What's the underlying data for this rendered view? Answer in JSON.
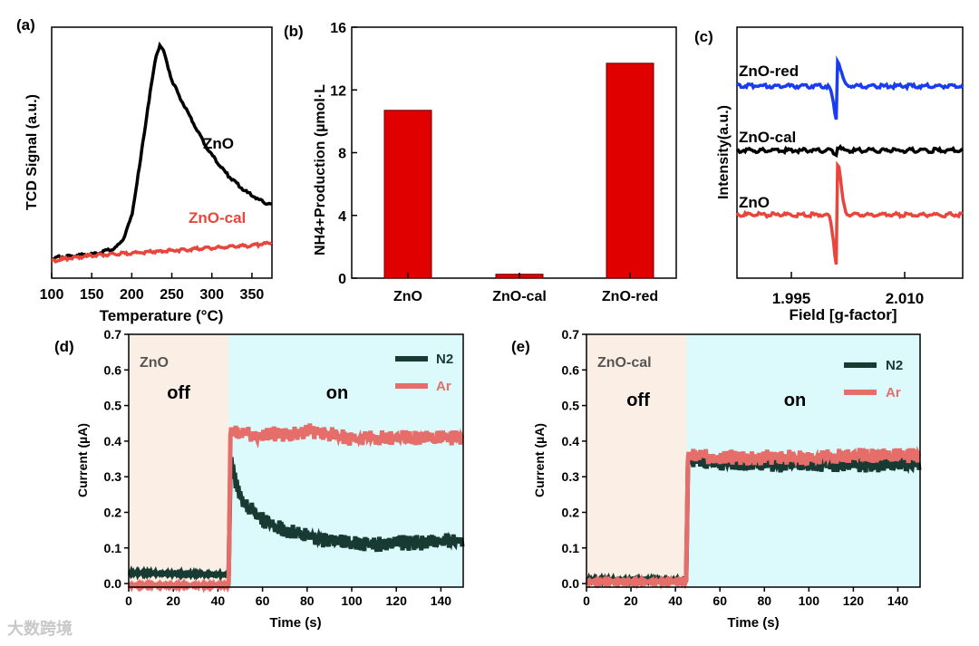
{
  "colors": {
    "black": "#000000",
    "red": "#e8463c",
    "blue": "#1a3cf0",
    "dark_green": "#173a32",
    "salmon": "#e56e6a",
    "off_bg": "#fbeee5",
    "on_bg": "#dcf9fb",
    "bar_red": "#e00000"
  },
  "watermark": "大数跨境",
  "chart_data": [
    {
      "panel": "(a)",
      "type": "line",
      "xlabel": "Temperature (°C)",
      "ylabel": "TCD Signal (a.u.)",
      "xlim": [
        100,
        375
      ],
      "xticks": [
        "100",
        "150",
        "200",
        "250",
        "300",
        "350"
      ],
      "series": [
        {
          "name": "ZnO",
          "color": "#000000",
          "x": [
            100,
            130,
            160,
            180,
            190,
            200,
            210,
            220,
            230,
            235,
            240,
            250,
            260,
            270,
            280,
            290,
            300,
            310,
            320,
            330,
            340,
            350,
            360,
            375
          ],
          "y": [
            0.08,
            0.09,
            0.1,
            0.12,
            0.16,
            0.25,
            0.45,
            0.68,
            0.88,
            0.93,
            0.9,
            0.79,
            0.72,
            0.66,
            0.6,
            0.54,
            0.49,
            0.45,
            0.41,
            0.38,
            0.35,
            0.33,
            0.31,
            0.29
          ]
        },
        {
          "name": "ZnO-cal",
          "color": "#e8463c",
          "x": [
            100,
            150,
            200,
            250,
            300,
            350,
            375
          ],
          "y": [
            0.07,
            0.09,
            0.1,
            0.11,
            0.12,
            0.13,
            0.14
          ]
        }
      ]
    },
    {
      "panel": "(b)",
      "type": "bar",
      "ylabel_main": "Production (µmol·L",
      "ylabel_species": "NH4+",
      "ylim": [
        0,
        16
      ],
      "yticks": [
        "0",
        "4",
        "8",
        "12",
        "16"
      ],
      "categories": [
        "ZnO",
        "ZnO-cal",
        "ZnO-red"
      ],
      "values": [
        10.7,
        0.25,
        13.7
      ]
    },
    {
      "panel": "(c)",
      "type": "line",
      "xlabel": "Field [g-factor]",
      "ylabel": "Intensity(a.u.)",
      "xticks": [
        "1.995",
        "2.010"
      ],
      "series": [
        {
          "name": "ZnO-red",
          "color": "#1a3cf0"
        },
        {
          "name": "ZnO-cal",
          "color": "#000000"
        },
        {
          "name": "ZnO",
          "color": "#e8463c"
        }
      ]
    },
    {
      "panel": "(d)",
      "type": "line",
      "sample": "ZnO",
      "xlabel": "Time (s)",
      "ylabel": "Current (µA)",
      "xlim": [
        0,
        150
      ],
      "ylim": [
        -0.01,
        0.7
      ],
      "xticks": [
        "0",
        "20",
        "40",
        "60",
        "80",
        "100",
        "120",
        "140"
      ],
      "yticks": [
        "0.0",
        "0.1",
        "0.2",
        "0.3",
        "0.4",
        "0.5",
        "0.6",
        "0.7"
      ],
      "region_off": "off",
      "region_on": "on",
      "switch_time": 45,
      "series": [
        {
          "name": "N2",
          "color": "#173a32",
          "x": [
            0,
            45,
            45.5,
            50,
            60,
            70,
            80,
            90,
            100,
            110,
            120,
            130,
            140,
            150
          ],
          "y": [
            0.03,
            0.025,
            0.36,
            0.25,
            0.19,
            0.16,
            0.145,
            0.13,
            0.125,
            0.12,
            0.125,
            0.125,
            0.13,
            0.13
          ]
        },
        {
          "name": "Ar",
          "color": "#e56e6a",
          "x": [
            0,
            45,
            45.5,
            50,
            60,
            70,
            80,
            90,
            100,
            110,
            120,
            130,
            140,
            150
          ],
          "y": [
            -0.005,
            -0.005,
            0.44,
            0.43,
            0.43,
            0.43,
            0.44,
            0.43,
            0.42,
            0.42,
            0.42,
            0.42,
            0.42,
            0.42
          ]
        }
      ]
    },
    {
      "panel": "(e)",
      "type": "line",
      "sample": "ZnO-cal",
      "xlabel": "Time (s)",
      "ylabel": "Current (µA)",
      "xlim": [
        0,
        150
      ],
      "ylim": [
        -0.01,
        0.7
      ],
      "xticks": [
        "0",
        "20",
        "40",
        "60",
        "80",
        "100",
        "120",
        "140"
      ],
      "yticks": [
        "0.0",
        "0.1",
        "0.2",
        "0.3",
        "0.4",
        "0.5",
        "0.6",
        "0.7"
      ],
      "region_off": "off",
      "region_on": "on",
      "switch_time": 45,
      "series": [
        {
          "name": "N2",
          "color": "#173a32",
          "x": [
            0,
            45,
            45.5,
            60,
            80,
            100,
            120,
            140,
            150
          ],
          "y": [
            0.01,
            0.01,
            0.36,
            0.35,
            0.345,
            0.345,
            0.345,
            0.345,
            0.345
          ]
        },
        {
          "name": "Ar",
          "color": "#e56e6a",
          "x": [
            0,
            45,
            45.5,
            60,
            80,
            100,
            120,
            140,
            150
          ],
          "y": [
            0.005,
            0.005,
            0.37,
            0.365,
            0.365,
            0.365,
            0.37,
            0.37,
            0.37
          ]
        }
      ]
    }
  ]
}
